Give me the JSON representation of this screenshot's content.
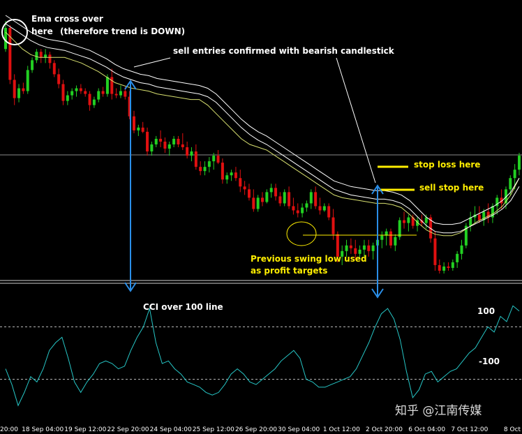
{
  "chart_data": {
    "type": "candlestick",
    "price_panel": {
      "candles": [
        {
          "o": 0.8,
          "h": 1.0,
          "l": 0.78,
          "c": 0.95
        },
        {
          "o": 0.95,
          "h": 0.97,
          "l": 0.55,
          "c": 0.58
        },
        {
          "o": 0.58,
          "h": 0.62,
          "l": 0.4,
          "c": 0.45
        },
        {
          "o": 0.45,
          "h": 0.55,
          "l": 0.42,
          "c": 0.52
        },
        {
          "o": 0.52,
          "h": 0.56,
          "l": 0.48,
          "c": 0.5
        },
        {
          "o": 0.5,
          "h": 0.68,
          "l": 0.48,
          "c": 0.65
        },
        {
          "o": 0.65,
          "h": 0.74,
          "l": 0.63,
          "c": 0.72
        },
        {
          "o": 0.72,
          "h": 0.8,
          "l": 0.7,
          "c": 0.78
        },
        {
          "o": 0.78,
          "h": 0.8,
          "l": 0.7,
          "c": 0.74
        },
        {
          "o": 0.74,
          "h": 0.8,
          "l": 0.7,
          "c": 0.76
        },
        {
          "o": 0.76,
          "h": 0.78,
          "l": 0.66,
          "c": 0.7
        },
        {
          "o": 0.7,
          "h": 0.72,
          "l": 0.6,
          "c": 0.62
        },
        {
          "o": 0.62,
          "h": 0.66,
          "l": 0.52,
          "c": 0.55
        },
        {
          "o": 0.55,
          "h": 0.58,
          "l": 0.4,
          "c": 0.43
        },
        {
          "o": 0.43,
          "h": 0.5,
          "l": 0.4,
          "c": 0.47
        },
        {
          "o": 0.47,
          "h": 0.52,
          "l": 0.44,
          "c": 0.5
        },
        {
          "o": 0.5,
          "h": 0.54,
          "l": 0.46,
          "c": 0.52
        },
        {
          "o": 0.52,
          "h": 0.55,
          "l": 0.48,
          "c": 0.5
        },
        {
          "o": 0.5,
          "h": 0.52,
          "l": 0.46,
          "c": 0.48
        },
        {
          "o": 0.48,
          "h": 0.5,
          "l": 0.36,
          "c": 0.4
        },
        {
          "o": 0.4,
          "h": 0.46,
          "l": 0.38,
          "c": 0.44
        },
        {
          "o": 0.44,
          "h": 0.52,
          "l": 0.42,
          "c": 0.5
        },
        {
          "o": 0.5,
          "h": 0.53,
          "l": 0.46,
          "c": 0.48
        },
        {
          "o": 0.48,
          "h": 0.62,
          "l": 0.46,
          "c": 0.6
        },
        {
          "o": 0.6,
          "h": 0.66,
          "l": 0.44,
          "c": 0.48
        },
        {
          "o": 0.48,
          "h": 0.52,
          "l": 0.45,
          "c": 0.47
        },
        {
          "o": 0.47,
          "h": 0.54,
          "l": 0.45,
          "c": 0.5
        },
        {
          "o": 0.5,
          "h": 0.53,
          "l": 0.44,
          "c": 0.46
        },
        {
          "o": 0.46,
          "h": 0.5,
          "l": 0.3,
          "c": 0.32
        },
        {
          "o": 0.32,
          "h": 0.36,
          "l": 0.2,
          "c": 0.22
        },
        {
          "o": 0.22,
          "h": 0.26,
          "l": 0.18,
          "c": 0.24
        },
        {
          "o": 0.24,
          "h": 0.28,
          "l": 0.2,
          "c": 0.21
        },
        {
          "o": 0.21,
          "h": 0.24,
          "l": 0.04,
          "c": 0.07
        },
        {
          "o": 0.07,
          "h": 0.14,
          "l": 0.04,
          "c": 0.12
        },
        {
          "o": 0.12,
          "h": 0.18,
          "l": 0.1,
          "c": 0.16
        },
        {
          "o": 0.16,
          "h": 0.22,
          "l": 0.1,
          "c": 0.14
        },
        {
          "o": 0.14,
          "h": 0.17,
          "l": 0.06,
          "c": 0.09
        },
        {
          "o": 0.09,
          "h": 0.14,
          "l": 0.04,
          "c": 0.12
        },
        {
          "o": 0.12,
          "h": 0.18,
          "l": 0.1,
          "c": 0.16
        },
        {
          "o": 0.16,
          "h": 0.18,
          "l": 0.1,
          "c": 0.12
        },
        {
          "o": 0.12,
          "h": 0.2,
          "l": 0.08,
          "c": 0.1
        },
        {
          "o": 0.1,
          "h": 0.14,
          "l": 0.02,
          "c": 0.04
        },
        {
          "o": 0.04,
          "h": 0.1,
          "l": 0.0,
          "c": 0.07
        },
        {
          "o": 0.07,
          "h": 0.12,
          "l": -0.06,
          "c": -0.04
        },
        {
          "o": -0.04,
          "h": 0.0,
          "l": -0.1,
          "c": -0.07
        },
        {
          "o": -0.07,
          "h": 0.0,
          "l": -0.1,
          "c": -0.04
        },
        {
          "o": -0.04,
          "h": 0.03,
          "l": -0.08,
          "c": 0.0
        },
        {
          "o": 0.0,
          "h": 0.06,
          "l": -0.06,
          "c": 0.04
        },
        {
          "o": 0.04,
          "h": 0.08,
          "l": -0.02,
          "c": -0.01
        },
        {
          "o": -0.01,
          "h": 0.02,
          "l": -0.16,
          "c": -0.13
        },
        {
          "o": -0.13,
          "h": -0.08,
          "l": -0.16,
          "c": -0.1
        },
        {
          "o": -0.1,
          "h": -0.06,
          "l": -0.14,
          "c": -0.08
        },
        {
          "o": -0.08,
          "h": -0.04,
          "l": -0.14,
          "c": -0.12
        },
        {
          "o": -0.12,
          "h": -0.06,
          "l": -0.22,
          "c": -0.18
        },
        {
          "o": -0.18,
          "h": -0.14,
          "l": -0.24,
          "c": -0.2
        },
        {
          "o": -0.2,
          "h": -0.16,
          "l": -0.28,
          "c": -0.26
        },
        {
          "o": -0.26,
          "h": -0.2,
          "l": -0.36,
          "c": -0.34
        },
        {
          "o": -0.34,
          "h": -0.24,
          "l": -0.36,
          "c": -0.26
        },
        {
          "o": -0.26,
          "h": -0.22,
          "l": -0.32,
          "c": -0.29
        },
        {
          "o": -0.29,
          "h": -0.2,
          "l": -0.3,
          "c": -0.22
        },
        {
          "o": -0.22,
          "h": -0.16,
          "l": -0.26,
          "c": -0.19
        },
        {
          "o": -0.19,
          "h": -0.16,
          "l": -0.28,
          "c": -0.25
        },
        {
          "o": -0.25,
          "h": -0.22,
          "l": -0.32,
          "c": -0.3
        },
        {
          "o": -0.3,
          "h": -0.2,
          "l": -0.32,
          "c": -0.22
        },
        {
          "o": -0.22,
          "h": -0.18,
          "l": -0.34,
          "c": -0.32
        },
        {
          "o": -0.32,
          "h": -0.26,
          "l": -0.38,
          "c": -0.35
        },
        {
          "o": -0.35,
          "h": -0.3,
          "l": -0.4,
          "c": -0.37
        },
        {
          "o": -0.37,
          "h": -0.3,
          "l": -0.4,
          "c": -0.33
        },
        {
          "o": -0.33,
          "h": -0.28,
          "l": -0.36,
          "c": -0.3
        },
        {
          "o": -0.3,
          "h": -0.2,
          "l": -0.34,
          "c": -0.22
        },
        {
          "o": -0.22,
          "h": -0.18,
          "l": -0.34,
          "c": -0.32
        },
        {
          "o": -0.32,
          "h": -0.26,
          "l": -0.38,
          "c": -0.35
        },
        {
          "o": -0.35,
          "h": -0.3,
          "l": -0.36,
          "c": -0.32
        },
        {
          "o": -0.32,
          "h": -0.3,
          "l": -0.42,
          "c": -0.4
        },
        {
          "o": -0.4,
          "h": -0.34,
          "l": -0.56,
          "c": -0.52
        },
        {
          "o": -0.52,
          "h": -0.5,
          "l": -0.72,
          "c": -0.68
        },
        {
          "o": -0.68,
          "h": -0.6,
          "l": -0.74,
          "c": -0.64
        },
        {
          "o": -0.64,
          "h": -0.56,
          "l": -0.68,
          "c": -0.6
        },
        {
          "o": -0.6,
          "h": -0.55,
          "l": -0.66,
          "c": -0.62
        },
        {
          "o": -0.62,
          "h": -0.56,
          "l": -0.7,
          "c": -0.66
        },
        {
          "o": -0.66,
          "h": -0.6,
          "l": -0.7,
          "c": -0.63
        },
        {
          "o": -0.63,
          "h": -0.56,
          "l": -0.68,
          "c": -0.6
        },
        {
          "o": -0.6,
          "h": -0.56,
          "l": -0.68,
          "c": -0.64
        },
        {
          "o": -0.64,
          "h": -0.58,
          "l": -0.7,
          "c": -0.6
        },
        {
          "o": -0.6,
          "h": -0.52,
          "l": -0.64,
          "c": -0.56
        },
        {
          "o": -0.56,
          "h": -0.5,
          "l": -0.62,
          "c": -0.53
        },
        {
          "o": -0.53,
          "h": -0.48,
          "l": -0.6,
          "c": -0.5
        },
        {
          "o": -0.5,
          "h": -0.48,
          "l": -0.62,
          "c": -0.6
        },
        {
          "o": -0.6,
          "h": -0.52,
          "l": -0.64,
          "c": -0.54
        },
        {
          "o": -0.54,
          "h": -0.4,
          "l": -0.56,
          "c": -0.42
        },
        {
          "o": -0.42,
          "h": -0.36,
          "l": -0.48,
          "c": -0.44
        },
        {
          "o": -0.44,
          "h": -0.38,
          "l": -0.5,
          "c": -0.4
        },
        {
          "o": -0.4,
          "h": -0.38,
          "l": -0.48,
          "c": -0.46
        },
        {
          "o": -0.46,
          "h": -0.4,
          "l": -0.5,
          "c": -0.42
        },
        {
          "o": -0.42,
          "h": -0.38,
          "l": -0.46,
          "c": -0.44
        },
        {
          "o": -0.44,
          "h": -0.38,
          "l": -0.48,
          "c": -0.4
        },
        {
          "o": -0.4,
          "h": -0.38,
          "l": -0.58,
          "c": -0.55
        },
        {
          "o": -0.55,
          "h": -0.5,
          "l": -0.78,
          "c": -0.74
        },
        {
          "o": -0.74,
          "h": -0.7,
          "l": -0.8,
          "c": -0.78
        },
        {
          "o": -0.78,
          "h": -0.72,
          "l": -0.8,
          "c": -0.75
        },
        {
          "o": -0.75,
          "h": -0.72,
          "l": -0.78,
          "c": -0.76
        },
        {
          "o": -0.76,
          "h": -0.7,
          "l": -0.78,
          "c": -0.72
        },
        {
          "o": -0.72,
          "h": -0.64,
          "l": -0.76,
          "c": -0.66
        },
        {
          "o": -0.66,
          "h": -0.56,
          "l": -0.7,
          "c": -0.6
        },
        {
          "o": -0.6,
          "h": -0.44,
          "l": -0.62,
          "c": -0.46
        },
        {
          "o": -0.46,
          "h": -0.36,
          "l": -0.5,
          "c": -0.4
        },
        {
          "o": -0.4,
          "h": -0.32,
          "l": -0.44,
          "c": -0.38
        },
        {
          "o": -0.38,
          "h": -0.32,
          "l": -0.44,
          "c": -0.42
        },
        {
          "o": -0.42,
          "h": -0.34,
          "l": -0.46,
          "c": -0.36
        },
        {
          "o": -0.36,
          "h": -0.3,
          "l": -0.44,
          "c": -0.4
        },
        {
          "o": -0.4,
          "h": -0.3,
          "l": -0.44,
          "c": -0.32
        },
        {
          "o": -0.32,
          "h": -0.24,
          "l": -0.38,
          "c": -0.26
        },
        {
          "o": -0.26,
          "h": -0.2,
          "l": -0.34,
          "c": -0.3
        },
        {
          "o": -0.3,
          "h": -0.18,
          "l": -0.34,
          "c": -0.2
        },
        {
          "o": -0.2,
          "h": -0.1,
          "l": -0.24,
          "c": -0.12
        },
        {
          "o": -0.12,
          "h": -0.02,
          "l": -0.2,
          "c": -0.06
        },
        {
          "o": -0.06,
          "h": 0.06,
          "l": -0.1,
          "c": 0.04
        }
      ],
      "ema_fast": [
        0.92,
        0.86,
        0.8,
        0.76,
        0.74,
        0.74,
        0.74,
        0.74,
        0.72,
        0.7,
        0.67,
        0.64,
        0.6,
        0.56,
        0.54,
        0.52,
        0.51,
        0.5,
        0.48,
        0.47,
        0.46,
        0.45,
        0.44,
        0.44,
        0.4,
        0.34,
        0.28,
        0.22,
        0.16,
        0.12,
        0.1,
        0.08,
        0.04,
        0.0,
        -0.04,
        -0.08,
        -0.12,
        -0.16,
        -0.2,
        -0.24,
        -0.26,
        -0.27,
        -0.28,
        -0.29,
        -0.3,
        -0.3,
        -0.31,
        -0.33,
        -0.38,
        -0.44,
        -0.49,
        -0.52,
        -0.53,
        -0.53,
        -0.51,
        -0.47,
        -0.43,
        -0.4,
        -0.37,
        -0.32,
        -0.24,
        -0.12
      ],
      "ema_slow": [
        0.98,
        0.94,
        0.9,
        0.86,
        0.83,
        0.81,
        0.8,
        0.79,
        0.77,
        0.75,
        0.73,
        0.7,
        0.67,
        0.63,
        0.6,
        0.58,
        0.56,
        0.55,
        0.53,
        0.52,
        0.51,
        0.5,
        0.49,
        0.48,
        0.46,
        0.42,
        0.36,
        0.3,
        0.24,
        0.19,
        0.15,
        0.12,
        0.08,
        0.04,
        0.0,
        -0.04,
        -0.08,
        -0.12,
        -0.16,
        -0.2,
        -0.22,
        -0.24,
        -0.25,
        -0.26,
        -0.27,
        -0.27,
        -0.28,
        -0.3,
        -0.34,
        -0.4,
        -0.46,
        -0.5,
        -0.51,
        -0.51,
        -0.5,
        -0.47,
        -0.44,
        -0.41,
        -0.38,
        -0.34,
        -0.28,
        -0.18
      ],
      "ema_slow_offset": [
        0.06,
        0.06,
        0.06,
        0.06,
        0.06,
        0.06,
        0.06,
        0.06,
        0.06,
        0.06,
        0.06,
        0.06,
        0.06,
        0.06,
        0.06,
        0.06,
        0.06,
        0.06,
        0.06,
        0.06,
        0.06,
        0.06,
        0.06,
        0.06,
        0.06,
        0.06,
        0.06,
        0.06,
        0.06,
        0.06,
        0.06,
        0.06,
        0.06,
        0.06,
        0.06,
        0.06,
        0.06,
        0.06,
        0.06,
        0.06,
        0.06,
        0.06,
        0.06,
        0.06,
        0.06,
        0.06,
        0.06,
        0.06,
        0.06,
        0.06,
        0.06,
        0.06,
        0.06,
        0.06,
        0.06,
        0.06,
        0.06,
        0.06,
        0.06,
        0.06,
        0.06,
        0.06
      ]
    },
    "cci_panel": {
      "levels": [
        100,
        -100
      ],
      "values": [
        -60,
        -120,
        -200,
        -150,
        -90,
        -110,
        -60,
        10,
        40,
        60,
        -20,
        -110,
        -150,
        -110,
        -80,
        -40,
        -30,
        -40,
        -60,
        -50,
        10,
        60,
        100,
        170,
        40,
        -40,
        -30,
        -60,
        -80,
        -110,
        -120,
        -130,
        -150,
        -160,
        -150,
        -120,
        -80,
        -60,
        -80,
        -110,
        -120,
        -100,
        -80,
        -60,
        -30,
        -10,
        10,
        -20,
        -100,
        -110,
        -130,
        -130,
        -120,
        -110,
        -100,
        -90,
        -60,
        -10,
        40,
        100,
        150,
        170,
        130,
        50,
        -70,
        -170,
        -140,
        -80,
        -70,
        -110,
        -90,
        -70,
        -60,
        -30,
        0,
        20,
        60,
        100,
        80,
        140,
        120,
        180,
        160
      ],
      "y_labels": [
        "100",
        "-100"
      ]
    },
    "x_tick_labels": [
      "20:00",
      "18 Sep 04:00",
      "19 Sep 12:00",
      "22 Sep 20:00",
      "24 Sep 04:00",
      "25 Sep 12:00",
      "26 Sep 20:00",
      "30 Sep 04:00",
      "1 Oct 12:00",
      "2 Oct 20:00",
      "6 Oct 04:00",
      "7 Oct 12:00",
      "8 Oct"
    ],
    "colors": {
      "bull": "#22d022",
      "bear": "#e01010",
      "ema": "#ffffff",
      "ema2": "#d8e070",
      "cci": "#26c6c6",
      "arrow": "#2a8ee8",
      "text_yellow": "#ffee00"
    }
  },
  "annotations": {
    "ema_cross_line1": "Ema cross over",
    "ema_cross_line2": "here",
    "trend_down": "(therefore trend is DOWN)",
    "sell_entries": "sell entries confirmed with bearish candlestick",
    "stop_loss": "stop loss here",
    "sell_stop": "sell stop here",
    "swing_low_line1": "Previous swing low used",
    "swing_low_line2": "as profit targets",
    "cci_over": "CCI over 100 line"
  },
  "watermark": "知乎 @江南传媒"
}
